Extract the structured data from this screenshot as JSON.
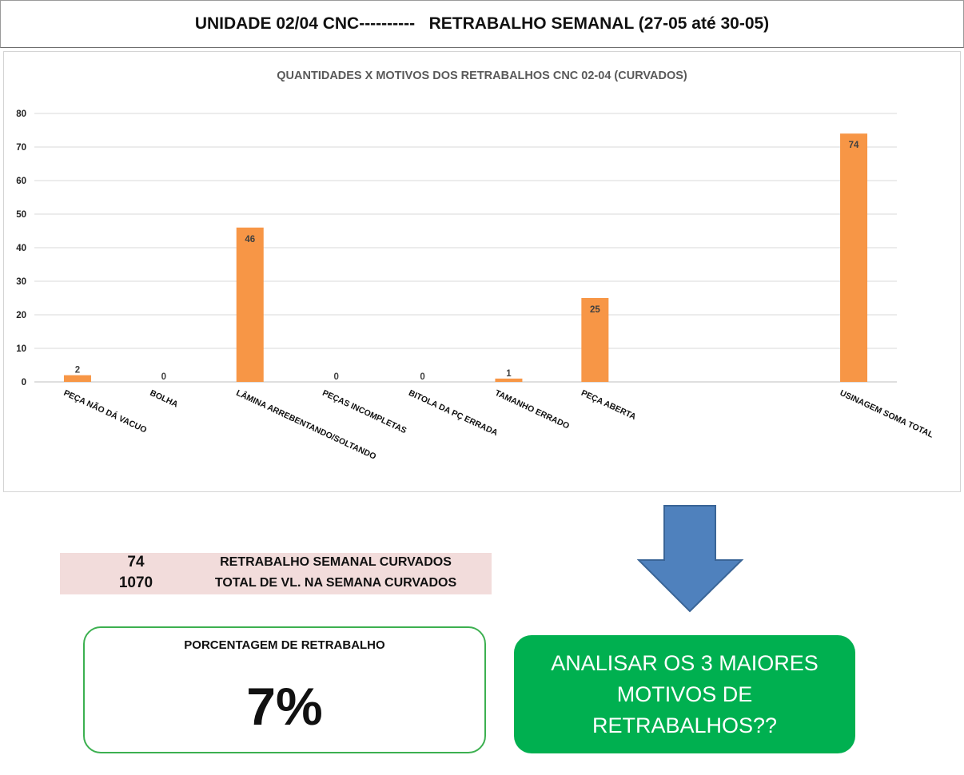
{
  "header": {
    "title": "UNIDADE 02/04 CNC----------   RETRABALHO SEMANAL (27-05 até 30-05)"
  },
  "chart_data": {
    "type": "bar",
    "title": "QUANTIDADES X MOTIVOS DOS RETRABALHOS CNC 02-04 (CURVADOS)",
    "categories": [
      "PEÇA NÃO DÁ VACUO",
      "BOLHA",
      "LÂMINA ARREBENTANDO/SOLTANDO",
      "PEÇAS INCOMPLETAS",
      "BITOLA DA PÇ ERRADA",
      "TAMANHO ERRADO",
      "PEÇA ABERTA",
      "",
      "",
      "USINAGEM SOMA TOTAL"
    ],
    "values": [
      2,
      0,
      46,
      0,
      0,
      1,
      25,
      null,
      null,
      74
    ],
    "data_labels": [
      "2",
      "0",
      "46",
      "0",
      "0",
      "1",
      "25",
      "",
      "",
      "74"
    ],
    "ylim": [
      0,
      80
    ],
    "yticks": [
      0,
      10,
      20,
      30,
      40,
      50,
      60,
      70,
      80
    ],
    "ytick_labels": [
      "0",
      "10",
      "20",
      "30",
      "40",
      "50",
      "60",
      "70",
      "80"
    ],
    "grid": true,
    "bar_color": "#f79646",
    "xlabel": "",
    "ylabel": ""
  },
  "summary": {
    "rows": [
      {
        "value": "74",
        "label": "RETRABALHO SEMANAL CURVADOS"
      },
      {
        "value": "1070",
        "label": "TOTAL DE VL. NA SEMANA CURVADOS"
      }
    ],
    "background_color": "#f2dcdb"
  },
  "percentage": {
    "label": "PORCENTAGEM DE RETRABALHO",
    "value": "7%",
    "border_color": "#3cb050"
  },
  "callout": {
    "text": "ANALISAR OS 3 MAIORES MOTIVOS DE RETRABALHOS??",
    "color": "#00b050",
    "arrow_color": "#4f81bd",
    "arrow_icon": "down-arrow-icon"
  }
}
